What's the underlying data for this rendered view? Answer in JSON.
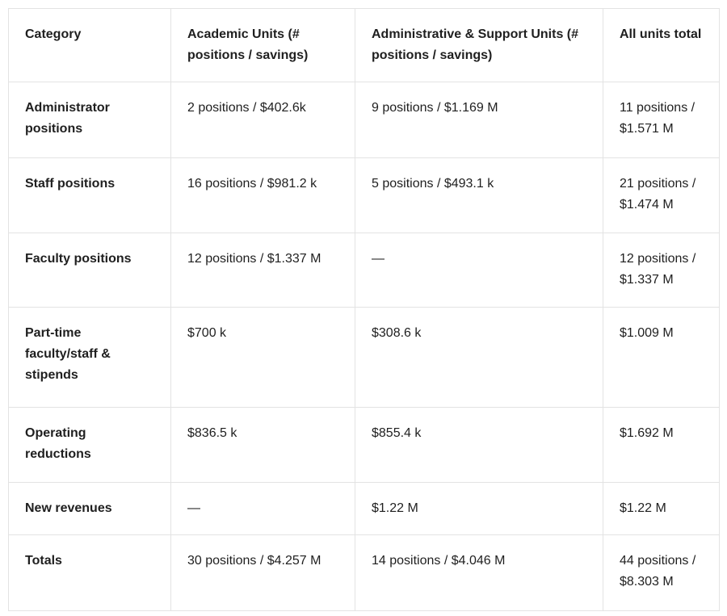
{
  "table": {
    "columns": [
      {
        "label": "Category"
      },
      {
        "label": "Academic Units (# positions / savings)"
      },
      {
        "label": "Administrative & Support Units (# positions / savings)"
      },
      {
        "label": "All units total"
      }
    ],
    "rows": [
      {
        "cells": [
          "Administrator positions",
          "2 positions / $402.6k",
          "9 positions / $1.169 M",
          "11 positions / $1.571 M"
        ]
      },
      {
        "cells": [
          "Staff positions",
          "16 positions / $981.2 k",
          "5 positions / $493.1 k",
          "21 positions / $1.474 M"
        ]
      },
      {
        "cells": [
          "Faculty positions",
          "12 positions / $1.337 M",
          "—",
          "12 positions / $1.337 M"
        ]
      },
      {
        "cells": [
          "Part-time faculty/staff & stipends",
          "$700 k",
          "$308.6 k",
          "$1.009 M"
        ]
      },
      {
        "cells": [
          "Operating reductions",
          "$836.5 k",
          "$855.4 k",
          "$1.692 M"
        ]
      },
      {
        "cells": [
          "New revenues",
          "—",
          "$1.22 M",
          "$1.22 M"
        ]
      },
      {
        "cells": [
          "Totals",
          "30 positions / $4.257 M",
          "14 positions / $4.046 M",
          "44 positions / $8.303 M"
        ]
      }
    ],
    "colors": {
      "text": "#1f1f1f",
      "border": "#e3e3e3",
      "background": "#ffffff"
    }
  }
}
